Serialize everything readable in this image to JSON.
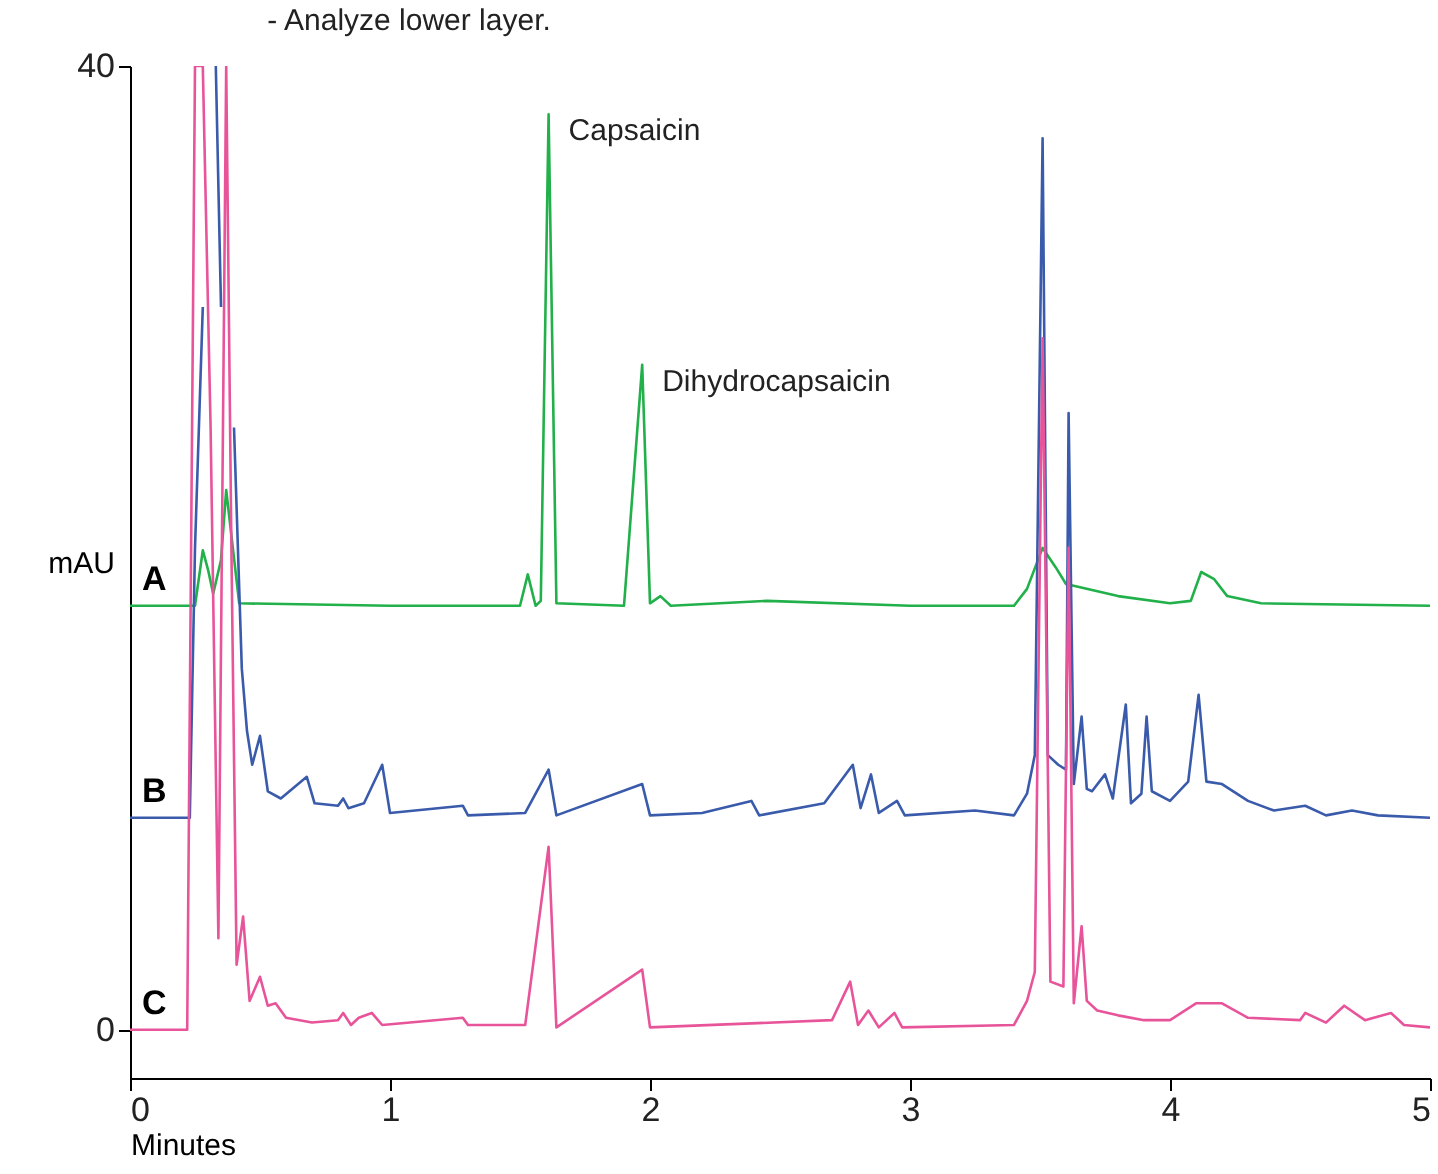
{
  "chart_data": {
    "type": "line",
    "xlabel": "Minutes",
    "ylabel": "mAU",
    "xlim": [
      0,
      5
    ],
    "ylim": [
      -2,
      40
    ],
    "xticks": [
      0,
      1,
      2,
      3,
      4,
      5
    ],
    "yticks": [
      0,
      40
    ],
    "grid": false,
    "legend": false,
    "annotations": [
      "- Analyze lower layer.",
      {
        "text": "Capsaicin",
        "x": 1.61,
        "y": 38
      },
      {
        "text": "Dihydrocapsaicin",
        "x": 1.97,
        "y": 27.6
      }
    ],
    "series": [
      {
        "name": "A",
        "color": "#22b04a",
        "x": [
          0,
          0.25,
          0.28,
          0.3,
          0.32,
          0.35,
          0.37,
          0.42,
          1.0,
          1.5,
          1.53,
          1.56,
          1.58,
          1.61,
          1.64,
          1.9,
          1.97,
          2.0,
          2.04,
          2.08,
          2.45,
          3.0,
          3.4,
          3.45,
          3.51,
          3.56,
          3.6,
          3.8,
          4.0,
          4.08,
          4.12,
          4.17,
          4.22,
          4.35,
          5.0
        ],
        "values": [
          17.6,
          17.6,
          19.9,
          19.1,
          18.1,
          19.5,
          22.4,
          17.7,
          17.6,
          17.6,
          18.9,
          17.6,
          17.8,
          38,
          17.7,
          17.6,
          27.6,
          17.7,
          18,
          17.6,
          17.8,
          17.6,
          17.6,
          18.3,
          20,
          19.2,
          18.5,
          18,
          17.7,
          17.8,
          19,
          18.7,
          18,
          17.7,
          17.6
        ]
      },
      {
        "name": "B",
        "color": "#3a5bab",
        "x": [
          0,
          0.23,
          0.25,
          0.28,
          0.31,
          0.33,
          0.35,
          0.37,
          0.4,
          0.43,
          0.45,
          0.47,
          0.5,
          0.53,
          0.58,
          0.68,
          0.71,
          0.8,
          0.82,
          0.84,
          0.9,
          0.97,
          1.0,
          1.28,
          1.3,
          1.52,
          1.61,
          1.64,
          1.97,
          2.0,
          2.2,
          2.39,
          2.42,
          2.67,
          2.78,
          2.81,
          2.85,
          2.88,
          2.95,
          2.98,
          3.25,
          3.4,
          3.45,
          3.48,
          3.51,
          3.53,
          3.57,
          3.6,
          3.61,
          3.63,
          3.66,
          3.68,
          3.7,
          3.75,
          3.78,
          3.83,
          3.85,
          3.89,
          3.91,
          3.93,
          4.0,
          4.07,
          4.11,
          4.14,
          4.2,
          4.3,
          4.4,
          4.52,
          4.6,
          4.7,
          4.8,
          5.0
        ],
        "values": [
          8.8,
          8.8,
          20,
          30,
          null,
          40,
          30,
          null,
          25,
          15,
          12.4,
          11,
          12.2,
          9.9,
          9.6,
          10.5,
          9.4,
          9.3,
          9.6,
          9.2,
          9.4,
          11,
          9,
          9.3,
          8.9,
          9,
          10.8,
          8.9,
          10.2,
          8.9,
          9,
          9.5,
          8.9,
          9.4,
          11,
          9.2,
          10.6,
          9,
          9.5,
          8.9,
          9.1,
          8.9,
          9.8,
          11.4,
          37,
          11.4,
          11,
          10.8,
          25.6,
          10.2,
          13,
          10,
          9.9,
          10.6,
          9.6,
          13.5,
          9.4,
          9.8,
          13,
          9.9,
          9.5,
          10.3,
          13.9,
          10.3,
          10.2,
          9.5,
          9.1,
          9.3,
          8.9,
          9.1,
          8.9,
          8.8
        ]
      },
      {
        "name": "C",
        "color": "#e8549a",
        "x": [
          0,
          0.22,
          0.25,
          0.28,
          0.31,
          0.34,
          0.37,
          0.39,
          0.41,
          0.435,
          0.46,
          0.5,
          0.53,
          0.56,
          0.6,
          0.7,
          0.8,
          0.82,
          0.85,
          0.88,
          0.93,
          0.97,
          1.28,
          1.3,
          1.52,
          1.61,
          1.64,
          1.97,
          2.0,
          2.7,
          2.77,
          2.8,
          2.84,
          2.88,
          2.94,
          2.97,
          3.4,
          3.45,
          3.48,
          3.51,
          3.54,
          3.59,
          3.61,
          3.63,
          3.66,
          3.68,
          3.72,
          3.8,
          3.9,
          4.0,
          4.1,
          4.2,
          4.3,
          4.5,
          4.52,
          4.6,
          4.67,
          4.75,
          4.85,
          4.9,
          5.0
        ],
        "values": [
          0,
          0,
          40,
          40,
          25,
          3.8,
          40,
          20,
          2.7,
          4.7,
          1.2,
          2.2,
          1,
          1.1,
          0.5,
          0.3,
          0.4,
          0.7,
          0.2,
          0.5,
          0.7,
          0.2,
          0.5,
          0.2,
          0.2,
          7.6,
          0.1,
          2.5,
          0.1,
          0.4,
          2,
          0.2,
          0.8,
          0.1,
          0.7,
          0.1,
          0.2,
          1.2,
          2.4,
          28.7,
          2,
          1.8,
          20,
          1.1,
          4.3,
          1.2,
          0.8,
          0.6,
          0.4,
          0.4,
          1.1,
          1.1,
          0.5,
          0.4,
          0.7,
          0.3,
          1,
          0.4,
          0.7,
          0.2,
          0.1
        ]
      }
    ]
  }
}
